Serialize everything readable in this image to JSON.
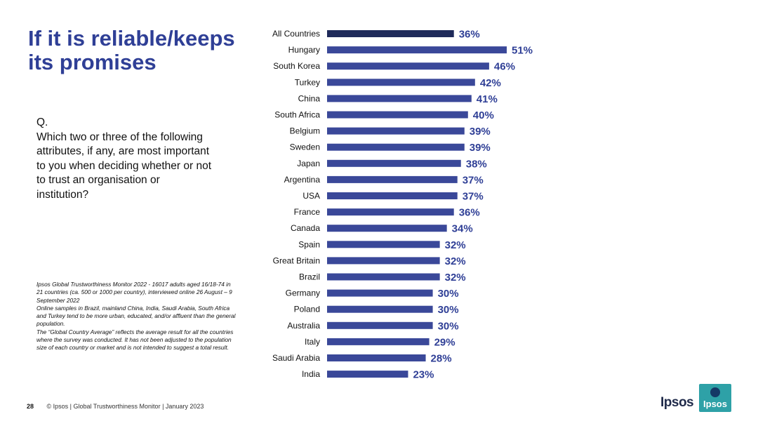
{
  "slide": {
    "title": "If it is reliable/keeps its promises",
    "question_label": "Q.",
    "question_text": "Which two or three of the following attributes, if any, are most important to you when deciding whether or not to trust an organisation or institution?",
    "notes": [
      "Ipsos Global Trustworthiness Monitor 2022 - 16017 adults aged 16/18-74 in 21 countries (ca. 500 or 1000 per country), interviewed online 26 August – 9 September 2022",
      "Online samples in Brazil, mainland China, India, Saudi Arabia, South Africa and Turkey tend to be more urban, educated, and/or affluent than the general population.",
      "The “Global Country Average” reflects the average result for all the countries where the survey was conducted. It has not been adjusted to the population size of each country or market and is not intended to suggest a total result."
    ],
    "page_number": "28",
    "footer_text": "© Ipsos | Global Trustworthiness Monitor | January 2023",
    "brand_word": "Ipsos",
    "brand_logo_text": "Ipsos"
  },
  "colors": {
    "title": "#2f3f96",
    "bar": "#3a4899",
    "bar_highlight": "#1f2a5a",
    "label": "#2f3f96",
    "logo": "#1d9aa0"
  },
  "chart_data": {
    "type": "bar",
    "orientation": "horizontal",
    "categories": [
      "All Countries",
      "Hungary",
      "South Korea",
      "Turkey",
      "China",
      "South Africa",
      "Belgium",
      "Sweden",
      "Japan",
      "Argentina",
      "USA",
      "France",
      "Canada",
      "Spain",
      "Great Britain",
      "Brazil",
      "Germany",
      "Poland",
      "Australia",
      "Italy",
      "Saudi Arabia",
      "India"
    ],
    "values": [
      36,
      51,
      46,
      42,
      41,
      40,
      39,
      39,
      38,
      37,
      37,
      36,
      34,
      32,
      32,
      32,
      30,
      30,
      30,
      29,
      28,
      23
    ],
    "value_suffix": "%",
    "highlight_index": 0,
    "xlim": [
      0,
      51
    ],
    "grid": false,
    "legend": "none"
  }
}
